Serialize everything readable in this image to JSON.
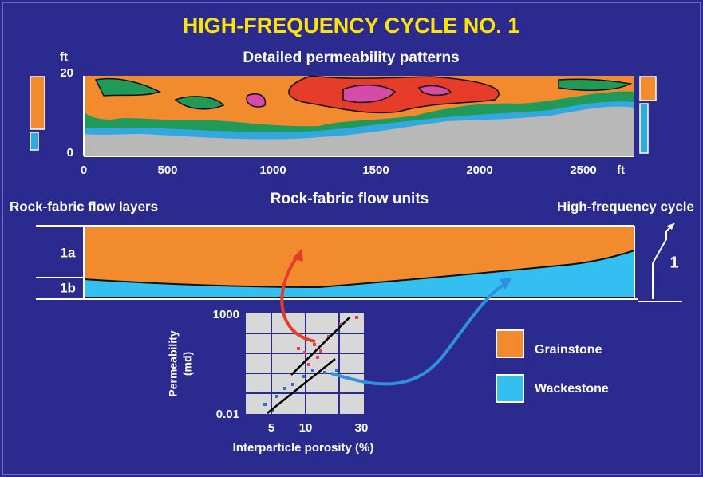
{
  "title": "HIGH-FREQUENCY CYCLE NO. 1",
  "permeability_panel": {
    "title": "Detailed permeability patterns",
    "y_unit": "ft",
    "y_ticks": [
      "20",
      "0"
    ],
    "x_ticks": [
      "0",
      "500",
      "1000",
      "1500",
      "2000",
      "2500"
    ],
    "x_unit": "ft"
  },
  "flow_panel": {
    "left_label": "Rock-fabric flow layers",
    "title": "Rock-fabric flow units",
    "right_label": "High-frequency cycle",
    "layers": [
      "1a",
      "1b"
    ],
    "cycle": "1"
  },
  "crossplot": {
    "y_label": [
      "Permeability",
      "(md)"
    ],
    "y_ticks": [
      "1000",
      "0.01"
    ],
    "x_ticks": [
      "5",
      "10",
      "30"
    ],
    "x_label": "Interparticle porosity (%)"
  },
  "legend": [
    "Grainstone",
    "Wackestone"
  ]
}
